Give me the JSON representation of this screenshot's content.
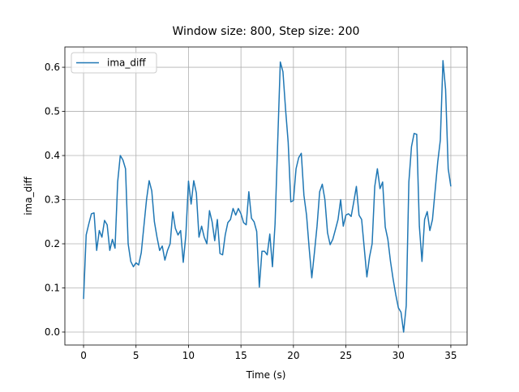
{
  "chart_data": {
    "type": "line",
    "title": "Window size: 800, Step size: 200",
    "x_label": "Time (s)",
    "y_label": "ima_diff",
    "x": [
      0,
      0.25,
      0.5,
      0.75,
      1,
      1.25,
      1.5,
      1.75,
      2,
      2.25,
      2.5,
      2.75,
      3,
      3.25,
      3.5,
      3.75,
      4,
      4.25,
      4.5,
      4.75,
      5,
      5.25,
      5.5,
      5.75,
      6,
      6.25,
      6.5,
      6.75,
      7,
      7.25,
      7.5,
      7.75,
      8,
      8.25,
      8.5,
      8.75,
      9,
      9.25,
      9.5,
      9.75,
      10,
      10.25,
      10.5,
      10.75,
      11,
      11.25,
      11.5,
      11.75,
      12,
      12.25,
      12.5,
      12.75,
      13,
      13.25,
      13.5,
      13.75,
      14,
      14.25,
      14.5,
      14.75,
      15,
      15.25,
      15.5,
      15.75,
      16,
      16.25,
      16.5,
      16.75,
      17,
      17.25,
      17.5,
      17.75,
      18,
      18.25,
      18.5,
      18.75,
      19,
      19.25,
      19.5,
      19.75,
      20,
      20.25,
      20.5,
      20.75,
      21,
      21.25,
      21.5,
      21.75,
      22,
      22.25,
      22.5,
      22.75,
      23,
      23.25,
      23.5,
      23.75,
      24,
      24.25,
      24.5,
      24.75,
      25,
      25.25,
      25.5,
      25.75,
      26,
      26.25,
      26.5,
      26.75,
      27,
      27.25,
      27.5,
      27.75,
      28,
      28.25,
      28.5,
      28.75,
      29,
      29.25,
      29.5,
      29.75,
      30,
      30.25,
      30.5,
      30.75,
      31,
      31.25,
      31.5,
      31.75,
      32,
      32.25,
      32.5,
      32.75,
      33,
      33.25,
      33.5,
      33.75,
      34,
      34.25,
      34.5,
      34.75,
      35
    ],
    "series": [
      {
        "name": "ima_diff",
        "color": "#1f77b4",
        "values": [
          0.075,
          0.22,
          0.245,
          0.268,
          0.27,
          0.185,
          0.23,
          0.215,
          0.253,
          0.243,
          0.185,
          0.21,
          0.19,
          0.34,
          0.4,
          0.39,
          0.37,
          0.2,
          0.16,
          0.148,
          0.157,
          0.152,
          0.18,
          0.24,
          0.3,
          0.343,
          0.32,
          0.25,
          0.215,
          0.185,
          0.195,
          0.163,
          0.185,
          0.2,
          0.272,
          0.235,
          0.22,
          0.23,
          0.158,
          0.22,
          0.342,
          0.29,
          0.343,
          0.315,
          0.215,
          0.24,
          0.215,
          0.2,
          0.275,
          0.25,
          0.207,
          0.255,
          0.178,
          0.175,
          0.22,
          0.248,
          0.255,
          0.28,
          0.265,
          0.28,
          0.268,
          0.248,
          0.243,
          0.318,
          0.258,
          0.25,
          0.228,
          0.102,
          0.183,
          0.183,
          0.175,
          0.222,
          0.148,
          0.245,
          0.43,
          0.612,
          0.59,
          0.505,
          0.43,
          0.295,
          0.298,
          0.37,
          0.395,
          0.405,
          0.31,
          0.265,
          0.19,
          0.123,
          0.18,
          0.24,
          0.318,
          0.335,
          0.3,
          0.225,
          0.198,
          0.21,
          0.232,
          0.255,
          0.3,
          0.24,
          0.265,
          0.268,
          0.262,
          0.295,
          0.33,
          0.265,
          0.255,
          0.19,
          0.125,
          0.17,
          0.2,
          0.33,
          0.37,
          0.325,
          0.34,
          0.238,
          0.21,
          0.16,
          0.12,
          0.085,
          0.055,
          0.045,
          0.0,
          0.06,
          0.34,
          0.42,
          0.45,
          0.448,
          0.24,
          0.16,
          0.255,
          0.273,
          0.23,
          0.255,
          0.32,
          0.385,
          0.435,
          0.615,
          0.55,
          0.37,
          0.33
        ]
      }
    ],
    "xlim": [
      -1.78,
      36.55
    ],
    "ylim": [
      -0.0294,
      0.646
    ],
    "xticks": [
      0,
      5,
      10,
      15,
      20,
      25,
      30,
      35
    ],
    "yticks": [
      {
        "value": 0,
        "label": "0.0"
      },
      0.1,
      0.2,
      0.3,
      0.4,
      0.5,
      0.6
    ],
    "grid": true,
    "legend": "upper left"
  }
}
